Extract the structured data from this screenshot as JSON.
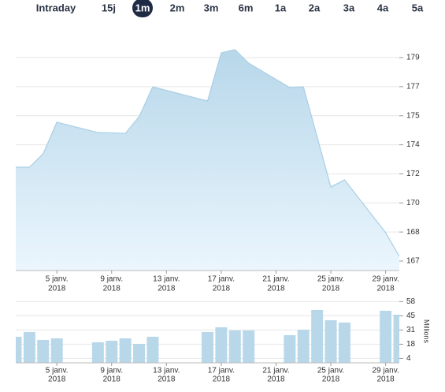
{
  "tabs": {
    "items": [
      "Intraday",
      "15j",
      "1m",
      "2m",
      "3m",
      "6m",
      "1a",
      "2a",
      "3a",
      "4a",
      "5a"
    ],
    "selected_index": 2
  },
  "chart_data": [
    {
      "type": "area",
      "color": "#a9cfe5",
      "x": [
        2,
        3,
        4,
        5,
        8,
        9,
        10,
        11,
        12,
        16,
        17,
        18,
        19,
        22,
        23,
        24,
        25,
        26,
        29,
        30
      ],
      "values": [
        172.25,
        172.25,
        173.06,
        174.96,
        174.34,
        174.32,
        174.29,
        175.29,
        177.09,
        176.24,
        179.14,
        179.33,
        178.52,
        177.05,
        177.09,
        174.08,
        171.06,
        171.49,
        168.31,
        166.88
      ],
      "xlim": [
        2,
        30
      ],
      "xticks": [
        {
          "value": 5,
          "label": "5 janv.",
          "sublabel": "2018"
        },
        {
          "value": 9,
          "label": "9 janv.",
          "sublabel": "2018"
        },
        {
          "value": 13,
          "label": "13 janv.",
          "sublabel": "2018"
        },
        {
          "value": 17,
          "label": "17 janv.",
          "sublabel": "2018"
        },
        {
          "value": 21,
          "label": "21 janv.",
          "sublabel": "2018"
        },
        {
          "value": 25,
          "label": "25 janv.",
          "sublabel": "2018"
        },
        {
          "value": 29,
          "label": "29 janv.",
          "sublabel": "2018"
        }
      ],
      "ylim": [
        166.03,
        180.42
      ],
      "yticks": [
        {
          "value": 178.85,
          "label": "179"
        },
        {
          "value": 177.1,
          "label": "177"
        },
        {
          "value": 175.35,
          "label": "175"
        },
        {
          "value": 173.6,
          "label": "174"
        },
        {
          "value": 171.85,
          "label": "172"
        },
        {
          "value": 170.1,
          "label": "170"
        },
        {
          "value": 168.35,
          "label": "168"
        },
        {
          "value": 166.6,
          "label": "167"
        }
      ],
      "grid": true
    },
    {
      "type": "bar",
      "color": "#b8d8ea",
      "ylabel": "Millions",
      "x": [
        2,
        3,
        4,
        5,
        8,
        9,
        10,
        11,
        12,
        16,
        17,
        18,
        19,
        22,
        23,
        24,
        25,
        26,
        29,
        30
      ],
      "values": [
        24.8,
        29.3,
        21.8,
        23.3,
        19.5,
        21,
        23.3,
        18,
        24.8,
        29.3,
        33.8,
        30.8,
        30.8,
        26.3,
        31.5,
        50.3,
        40.5,
        38.3,
        49.5,
        45.8
      ],
      "xlim": [
        2,
        30
      ],
      "xticks": [
        {
          "value": 5,
          "label": "5 janv.",
          "sublabel": "2018"
        },
        {
          "value": 9,
          "label": "9 janv.",
          "sublabel": "2018"
        },
        {
          "value": 13,
          "label": "13 janv.",
          "sublabel": "2018"
        },
        {
          "value": 17,
          "label": "17 janv.",
          "sublabel": "2018"
        },
        {
          "value": 21,
          "label": "21 janv.",
          "sublabel": "2018"
        },
        {
          "value": 25,
          "label": "25 janv.",
          "sublabel": "2018"
        },
        {
          "value": 29,
          "label": "29 janv.",
          "sublabel": "2018"
        }
      ],
      "ylim": [
        0,
        60
      ],
      "yticks": [
        {
          "value": 58.2,
          "label": "58"
        },
        {
          "value": 44.7,
          "label": "45"
        },
        {
          "value": 31.2,
          "label": "31"
        },
        {
          "value": 17.7,
          "label": "18"
        },
        {
          "value": 4.2,
          "label": "4"
        }
      ],
      "grid": true
    }
  ]
}
